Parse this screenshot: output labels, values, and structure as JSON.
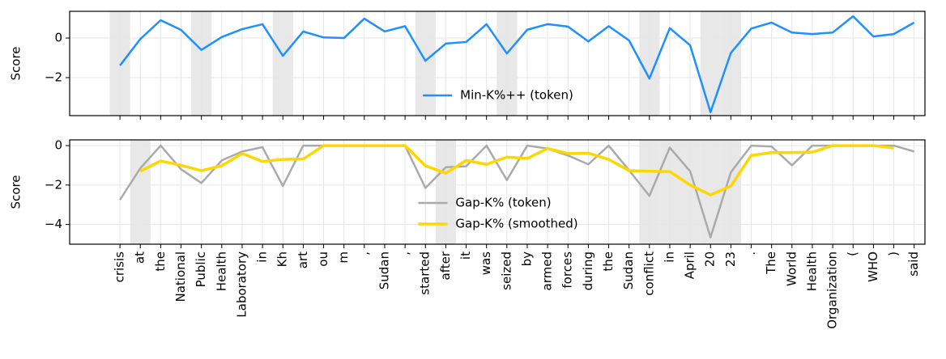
{
  "chart_data": [
    {
      "type": "line",
      "ylabel": "Score",
      "xlim": [
        -2.47,
        39.53
      ],
      "ylim": [
        -3.92,
        1.35
      ],
      "yticks": [
        {
          "value": -2,
          "label": "−2"
        },
        0
      ],
      "grid": true,
      "legend": "lower center",
      "highlight": [
        0,
        4,
        8,
        15,
        19,
        26,
        29,
        30
      ],
      "series": [
        {
          "name": "Min-K%++ (token)",
          "color": "#1e90ff",
          "values": [
            -1.39,
            -0.05,
            0.9,
            0.41,
            -0.6,
            0.05,
            0.45,
            0.7,
            -0.9,
            0.33,
            0.03,
            0.0,
            0.98,
            0.33,
            0.6,
            -1.15,
            -0.28,
            -0.2,
            0.7,
            -0.78,
            0.42,
            0.7,
            0.58,
            -0.17,
            0.6,
            -0.12,
            -2.05,
            0.5,
            -0.37,
            -3.75,
            -0.75,
            0.48,
            0.78,
            0.28,
            0.2,
            0.28,
            1.1,
            0.08,
            0.2,
            0.78
          ]
        }
      ]
    },
    {
      "type": "line",
      "ylabel": "Score",
      "xlim": [
        -2.47,
        39.53
      ],
      "ylim": [
        -5.0,
        0.29
      ],
      "yticks": [
        {
          "value": -4,
          "label": "−4"
        },
        {
          "value": -2,
          "label": "−2"
        },
        0
      ],
      "grid": true,
      "legend": "lower center",
      "highlight": [
        1,
        16,
        26,
        27,
        28,
        29,
        30
      ],
      "categories": [
        "crisis",
        "at",
        "the",
        "National",
        "Public",
        "Health",
        "Laboratory",
        "in",
        "Kh",
        "art",
        "ou",
        "m",
        ",",
        "Sudan",
        ",",
        "started",
        "after",
        "it",
        "was",
        "seized",
        "by",
        "armed",
        "forces",
        "during",
        "the",
        "Sudan",
        "conflict",
        "in",
        "April",
        "20",
        "23",
        ".",
        "The",
        "World",
        "Health",
        "Organization",
        "(",
        "WHO",
        ")",
        "said"
      ],
      "series": [
        {
          "name": "Gap-K% (token)",
          "color": "#aaaaaa",
          "values": [
            -2.75,
            -1.15,
            0,
            -1.2,
            -1.9,
            -0.75,
            -0.3,
            -0.08,
            -2.05,
            0,
            0,
            0,
            0,
            0,
            0,
            -2.15,
            -1.1,
            -1.05,
            0,
            -1.75,
            0,
            -0.15,
            -0.5,
            -0.95,
            0,
            -1.25,
            -2.55,
            -0.1,
            -1.3,
            -4.65,
            -1.35,
            0,
            -0.05,
            -1.0,
            0,
            0,
            0,
            0,
            0,
            -0.3
          ]
        },
        {
          "name": "Gap-K% (smoothed)",
          "color": "#ffd700",
          "values": [
            null,
            -1.3,
            -0.78,
            -1.0,
            -1.27,
            -1.02,
            -0.4,
            -0.8,
            -0.7,
            -0.68,
            0,
            0,
            0,
            0,
            0,
            -1.02,
            -1.4,
            -0.75,
            -0.95,
            -0.58,
            -0.65,
            -0.15,
            -0.4,
            -0.38,
            -0.7,
            -1.27,
            -1.3,
            -1.32,
            -2.0,
            -2.5,
            -2.05,
            -0.5,
            -0.35,
            -0.35,
            -0.33,
            0,
            0,
            0,
            -0.12,
            null
          ]
        }
      ]
    }
  ]
}
